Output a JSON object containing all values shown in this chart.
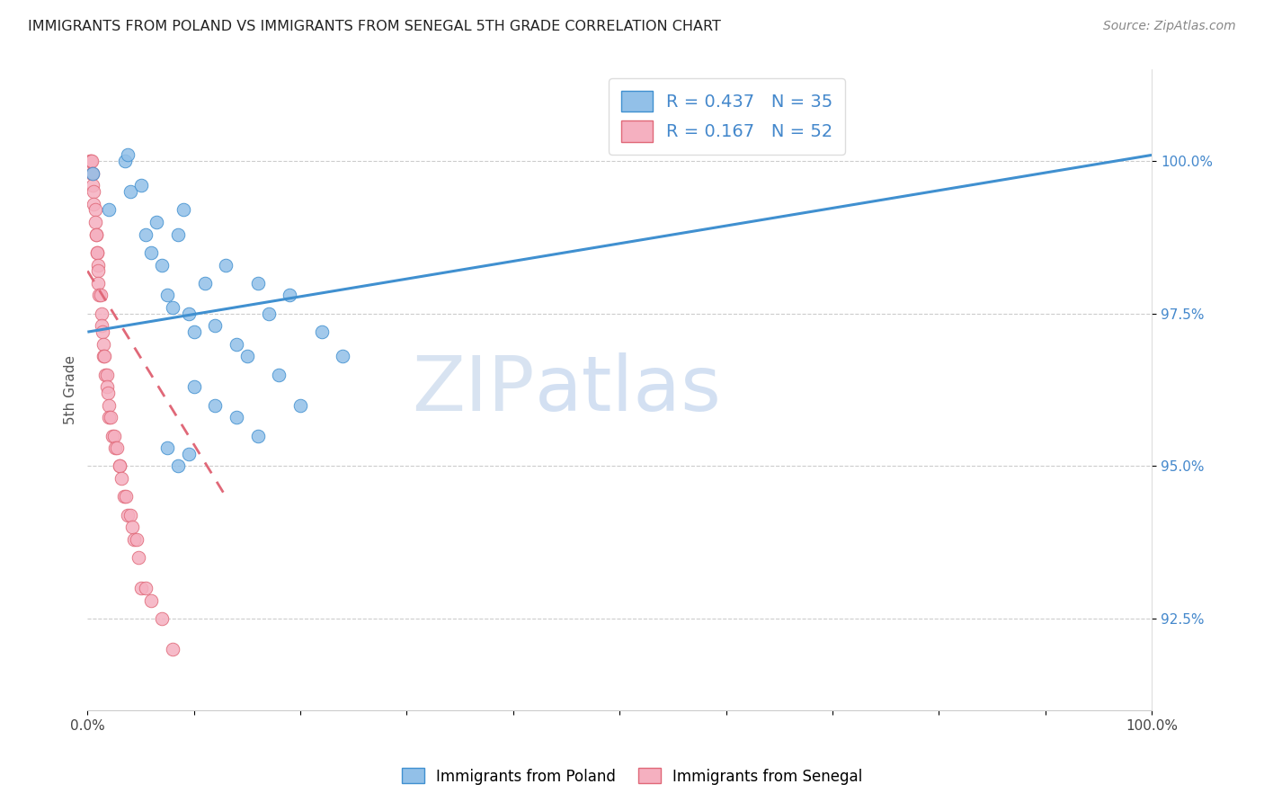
{
  "title": "IMMIGRANTS FROM POLAND VS IMMIGRANTS FROM SENEGAL 5TH GRADE CORRELATION CHART",
  "source": "Source: ZipAtlas.com",
  "ylabel": "5th Grade",
  "xmin": 0.0,
  "xmax": 1.0,
  "ymin": 91.0,
  "ymax": 101.5,
  "ytick_positions": [
    92.5,
    95.0,
    97.5,
    100.0
  ],
  "ytick_labels": [
    "92.5%",
    "95.0%",
    "97.5%",
    "100.0%"
  ],
  "xtick_labels": [
    "0.0%",
    "",
    "",
    "",
    "",
    "",
    "",
    "",
    "",
    "",
    "100.0%"
  ],
  "legend_r_poland": "R = 0.437",
  "legend_n_poland": "N = 35",
  "legend_r_senegal": "R = 0.167",
  "legend_n_senegal": "N = 52",
  "color_poland": "#92c0e8",
  "color_senegal": "#f5b0c0",
  "trendline_poland_color": "#4090d0",
  "trendline_senegal_color": "#e06878",
  "watermark_zip": "ZIP",
  "watermark_atlas": "atlas",
  "poland_x": [
    0.005,
    0.02,
    0.035,
    0.038,
    0.04,
    0.05,
    0.055,
    0.06,
    0.065,
    0.07,
    0.075,
    0.08,
    0.085,
    0.09,
    0.095,
    0.1,
    0.11,
    0.12,
    0.13,
    0.14,
    0.15,
    0.16,
    0.17,
    0.18,
    0.19,
    0.2,
    0.22,
    0.24,
    0.1,
    0.12,
    0.14,
    0.16,
    0.095,
    0.085,
    0.075
  ],
  "poland_y": [
    99.8,
    99.2,
    100.0,
    100.1,
    99.5,
    99.6,
    98.8,
    98.5,
    99.0,
    98.3,
    97.8,
    97.6,
    98.8,
    99.2,
    97.5,
    97.2,
    98.0,
    97.3,
    98.3,
    97.0,
    96.8,
    98.0,
    97.5,
    96.5,
    97.8,
    96.0,
    97.2,
    96.8,
    96.3,
    96.0,
    95.8,
    95.5,
    95.2,
    95.0,
    95.3
  ],
  "senegal_x": [
    0.002,
    0.003,
    0.004,
    0.004,
    0.005,
    0.005,
    0.006,
    0.006,
    0.007,
    0.007,
    0.008,
    0.008,
    0.009,
    0.009,
    0.01,
    0.01,
    0.01,
    0.011,
    0.012,
    0.013,
    0.013,
    0.014,
    0.015,
    0.015,
    0.016,
    0.017,
    0.018,
    0.018,
    0.019,
    0.02,
    0.02,
    0.022,
    0.023,
    0.025,
    0.026,
    0.028,
    0.03,
    0.03,
    0.032,
    0.034,
    0.036,
    0.038,
    0.04,
    0.042,
    0.044,
    0.046,
    0.048,
    0.05,
    0.055,
    0.06,
    0.07,
    0.08
  ],
  "senegal_y": [
    100.0,
    100.0,
    100.0,
    99.8,
    99.8,
    99.6,
    99.5,
    99.3,
    99.2,
    99.0,
    98.8,
    98.8,
    98.5,
    98.5,
    98.3,
    98.2,
    98.0,
    97.8,
    97.8,
    97.5,
    97.3,
    97.2,
    97.0,
    96.8,
    96.8,
    96.5,
    96.5,
    96.3,
    96.2,
    96.0,
    95.8,
    95.8,
    95.5,
    95.5,
    95.3,
    95.3,
    95.0,
    95.0,
    94.8,
    94.5,
    94.5,
    94.2,
    94.2,
    94.0,
    93.8,
    93.8,
    93.5,
    93.0,
    93.0,
    92.8,
    92.5,
    92.0
  ],
  "trendline_poland_x0": 0.0,
  "trendline_poland_y0": 97.2,
  "trendline_poland_x1": 1.0,
  "trendline_poland_y1": 100.1,
  "trendline_senegal_x0": 0.0,
  "trendline_senegal_y0": 98.2,
  "trendline_senegal_x1": 0.13,
  "trendline_senegal_y1": 94.5
}
